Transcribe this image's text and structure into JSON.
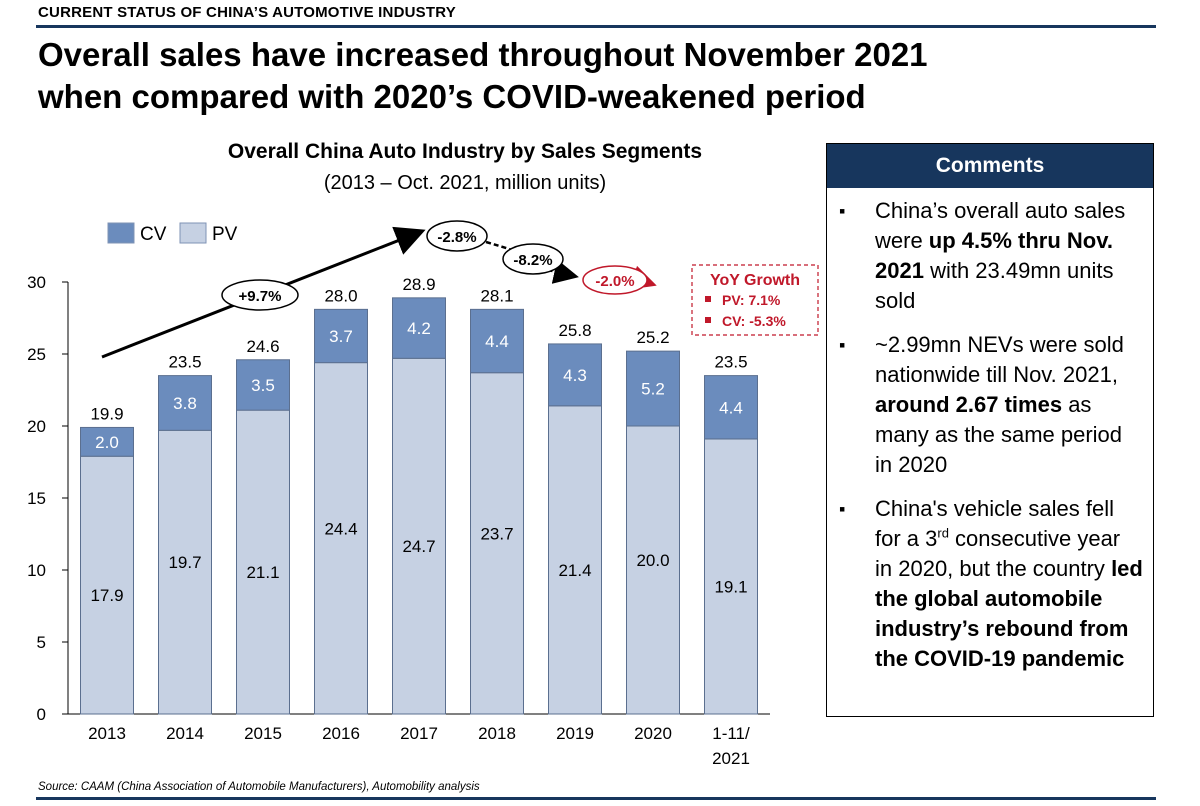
{
  "section_label": "CURRENT STATUS OF CHINA’S AUTOMOTIVE INDUSTRY",
  "headline": {
    "line1": "Overall sales have increased throughout November 2021",
    "line2": "when compared with 2020’s COVID-weakened period"
  },
  "chart_data": {
    "type": "bar",
    "stacked": true,
    "title": "Overall China Auto Industry by Sales Segments",
    "subtitle": "(2013 – Oct. 2021, million units)",
    "categories": [
      "2013",
      "2014",
      "2015",
      "2016",
      "2017",
      "2018",
      "2019",
      "2020",
      "1-11/ 2021"
    ],
    "category_lines": [
      [
        "2013"
      ],
      [
        "2014"
      ],
      [
        "2015"
      ],
      [
        "2016"
      ],
      [
        "2017"
      ],
      [
        "2018"
      ],
      [
        "2019"
      ],
      [
        "2020"
      ],
      [
        "1-11/",
        "2021"
      ]
    ],
    "series": [
      {
        "name": "PV",
        "color": "#c6d1e3",
        "values": [
          17.9,
          19.7,
          21.1,
          24.4,
          24.7,
          23.7,
          21.4,
          20.0,
          19.1
        ]
      },
      {
        "name": "CV",
        "color": "#6b8cbd",
        "values": [
          2.0,
          3.8,
          3.5,
          3.7,
          4.2,
          4.4,
          4.3,
          5.2,
          4.4
        ]
      }
    ],
    "totals": [
      "19.9",
      "23.5",
      "24.6",
      "28.0",
      "28.9",
      "28.1",
      "25.8",
      "25.2",
      "23.5"
    ],
    "pv_labels": [
      "17.9",
      "19.7",
      "21.1",
      "24.4",
      "24.7",
      "23.7",
      "21.4",
      "20.0",
      "19.1"
    ],
    "cv_labels": [
      "2.0",
      "3.8",
      "3.5",
      "3.7",
      "4.2",
      "4.4",
      "4.3",
      "5.2",
      "4.4"
    ],
    "ylim": [
      0,
      30
    ],
    "yticks": [
      "0",
      "5",
      "10",
      "15",
      "20",
      "25",
      "30"
    ],
    "ytick_values": [
      0,
      5,
      10,
      15,
      20,
      25,
      30
    ],
    "legend": {
      "placement": "top-left",
      "entries": [
        "CV",
        "PV"
      ]
    },
    "grid": false,
    "annotations": {
      "growth_labels": [
        "+9.7%",
        "-2.8%",
        "-8.2%",
        "-2.0%"
      ],
      "yoy_box": {
        "title": "YoY Growth",
        "lines": [
          "PV: 7.1%",
          "CV: -5.3%"
        ]
      }
    }
  },
  "comments": {
    "title": "Comments",
    "items": [
      {
        "parts": [
          "China’s overall auto sales were ",
          "up 4.5% thru Nov. 2021",
          " with 23.49mn units sold"
        ]
      },
      {
        "parts": [
          "~2.99mn NEVs were sold nationwide till Nov. 2021, ",
          "around 2.67 times",
          " as many as the same period in 2020"
        ]
      },
      {
        "parts": [
          "China's vehicle sales fell for a 3",
          "rd",
          " consecutive year in 2020, but the country ",
          "led the global automobile industry’s rebound from the COVID-19 pandemic"
        ]
      }
    ]
  },
  "source": "Source: CAAM (China Association of Automobile Manufacturers), Automobility analysis",
  "colors": {
    "accent_navy": "#17365d",
    "cv": "#6b8cbd",
    "pv": "#c6d1e3",
    "growth_red": "#c0182a"
  }
}
